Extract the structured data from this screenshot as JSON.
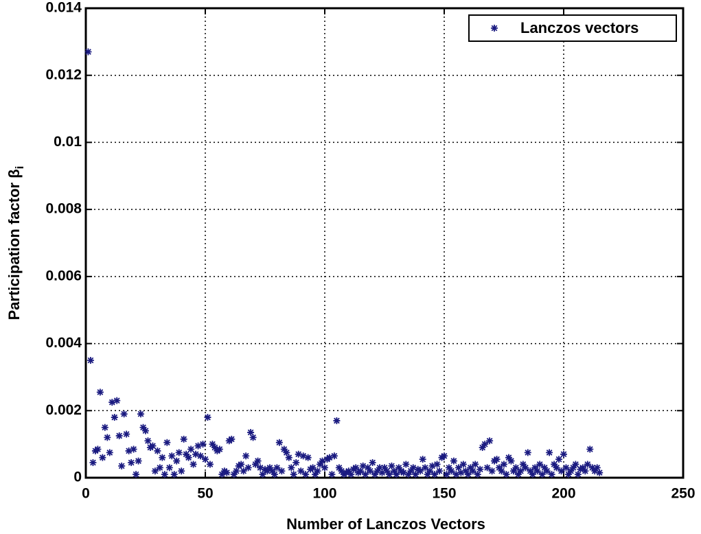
{
  "chart_data": {
    "type": "scatter",
    "x_label": "Number of Lanczos Vectors",
    "y_label": "Participation factor β",
    "y_label_subscript": "i",
    "xlim": [
      0,
      250
    ],
    "xticks": [
      0,
      50,
      100,
      150,
      200,
      250
    ],
    "ylim": [
      0,
      0.014
    ],
    "yticks": [
      0,
      0.002,
      0.004,
      0.006,
      0.008,
      0.01,
      0.012,
      0.014
    ],
    "grid": true,
    "legend": "northeast",
    "series": [
      {
        "name": "Lanczos vectors",
        "color": "#1a1a80",
        "x": [
          1,
          2,
          3,
          4,
          5,
          6,
          7,
          8,
          9,
          10,
          11,
          12,
          13,
          14,
          15,
          16,
          17,
          18,
          19,
          20,
          21,
          22,
          23,
          24,
          25,
          26,
          27,
          28,
          29,
          30,
          31,
          32,
          33,
          34,
          35,
          36,
          37,
          38,
          39,
          40,
          41,
          42,
          43,
          44,
          45,
          46,
          47,
          48,
          49,
          50,
          51,
          52,
          53,
          54,
          55,
          56,
          57,
          58,
          59,
          60,
          61,
          62,
          63,
          64,
          65,
          66,
          67,
          68,
          69,
          70,
          71,
          72,
          73,
          74,
          75,
          76,
          77,
          78,
          79,
          80,
          81,
          82,
          83,
          84,
          85,
          86,
          87,
          88,
          89,
          90,
          91,
          92,
          93,
          94,
          95,
          96,
          97,
          98,
          99,
          100,
          101,
          102,
          103,
          104,
          105,
          106,
          107,
          108,
          109,
          110,
          111,
          112,
          113,
          114,
          115,
          116,
          117,
          118,
          119,
          120,
          121,
          122,
          123,
          124,
          125,
          126,
          127,
          128,
          129,
          130,
          131,
          132,
          133,
          134,
          135,
          136,
          137,
          138,
          139,
          140,
          141,
          142,
          143,
          144,
          145,
          146,
          147,
          148,
          149,
          150,
          151,
          152,
          153,
          154,
          155,
          156,
          157,
          158,
          159,
          160,
          161,
          162,
          163,
          164,
          165,
          166,
          167,
          168,
          169,
          170,
          171,
          172,
          173,
          174,
          175,
          176,
          177,
          178,
          179,
          180,
          181,
          182,
          183,
          184,
          185,
          186,
          187,
          188,
          189,
          190,
          191,
          192,
          193,
          194,
          195,
          196,
          197,
          198,
          199,
          200,
          201,
          202,
          203,
          204,
          205,
          206,
          207,
          208,
          209,
          210,
          211,
          212,
          213,
          214,
          215
        ],
        "values": [
          0.0127,
          0.0035,
          0.00045,
          0.0008,
          0.00085,
          0.00255,
          0.0006,
          0.0015,
          0.0012,
          0.00075,
          0.00225,
          0.0018,
          0.0023,
          0.00125,
          0.00035,
          0.0019,
          0.0013,
          0.0008,
          0.00045,
          0.00085,
          0.0001,
          0.0005,
          0.0019,
          0.0015,
          0.0014,
          0.0011,
          0.0009,
          0.00095,
          0.0002,
          0.0008,
          0.0003,
          0.0006,
          0.0001,
          0.00105,
          0.0003,
          0.00065,
          0.0001,
          0.0005,
          0.00075,
          0.0002,
          0.00115,
          0.0007,
          0.0006,
          0.00085,
          0.0004,
          0.0007,
          0.00095,
          0.00065,
          0.001,
          0.00055,
          0.0018,
          0.0004,
          0.001,
          0.0009,
          0.0008,
          0.00085,
          0.0001,
          0.0002,
          0.00015,
          0.0011,
          0.00115,
          0.0001,
          0.0002,
          0.00035,
          0.0004,
          0.0002,
          0.00065,
          0.0003,
          0.00135,
          0.0012,
          0.0004,
          0.0005,
          0.0003,
          0.0001,
          0.00025,
          0.0002,
          0.0003,
          0.0002,
          0.0001,
          0.0003,
          0.00105,
          0.0002,
          0.00085,
          0.00075,
          0.0006,
          0.0003,
          0.0001,
          0.00045,
          0.0007,
          0.0002,
          0.00065,
          0.0001,
          0.0006,
          0.00025,
          0.0003,
          0.0001,
          0.0002,
          0.0004,
          0.0005,
          0.0003,
          0.00055,
          0.0006,
          0.0001,
          0.00065,
          0.0017,
          0.0003,
          0.0002,
          0.0001,
          0.00015,
          0.0002,
          0.0001,
          0.00025,
          0.0003,
          0.00015,
          0.0002,
          0.00035,
          0.0001,
          0.0003,
          0.0002,
          0.00045,
          0.0001,
          0.0002,
          0.0003,
          0.00015,
          0.0003,
          0.0002,
          0.0001,
          0.00035,
          0.0002,
          0.0001,
          0.0003,
          0.0002,
          0.00015,
          0.0004,
          0.0001,
          0.0002,
          0.0003,
          0.0001,
          0.00025,
          0.0002,
          0.00055,
          0.0003,
          0.0001,
          0.0002,
          0.00035,
          0.0001,
          0.0004,
          0.0002,
          0.0006,
          0.00065,
          0.0001,
          0.0003,
          0.0002,
          0.0005,
          0.0001,
          0.0003,
          0.00015,
          0.0004,
          0.0002,
          0.0001,
          0.0003,
          0.0002,
          0.0004,
          0.0001,
          0.00025,
          0.0009,
          0.001,
          0.0003,
          0.0011,
          0.0002,
          0.0005,
          0.00055,
          0.0003,
          0.0002,
          0.0004,
          0.0001,
          0.0006,
          0.0005,
          0.0002,
          0.0003,
          0.0001,
          0.0002,
          0.0004,
          0.0003,
          0.00075,
          0.0002,
          0.0001,
          0.0003,
          0.0002,
          0.0004,
          0.0001,
          0.0003,
          0.0002,
          0.00075,
          0.0001,
          0.0004,
          0.0003,
          0.00055,
          0.0002,
          0.0007,
          0.0003,
          0.0001,
          0.0002,
          0.0003,
          0.0004,
          0.0001,
          0.00025,
          0.0003,
          0.0002,
          0.0004,
          0.00085,
          0.0003,
          0.0002,
          0.0003,
          0.00015
        ]
      }
    ]
  }
}
